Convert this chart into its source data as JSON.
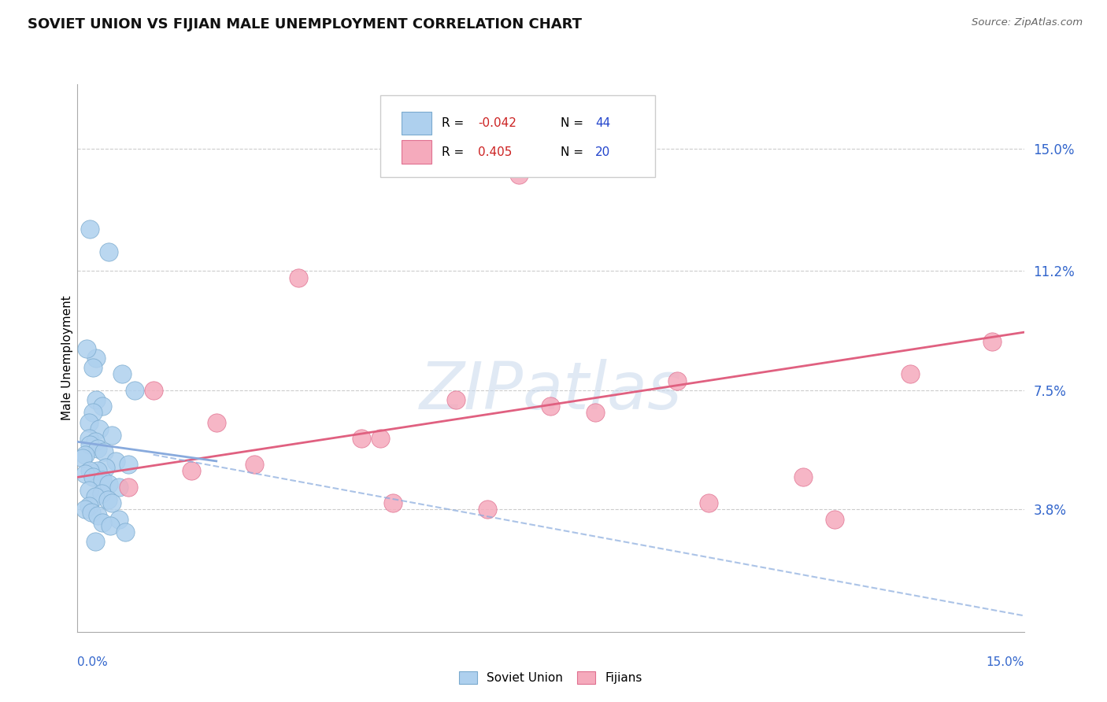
{
  "title": "SOVIET UNION VS FIJIAN MALE UNEMPLOYMENT CORRELATION CHART",
  "source": "Source: ZipAtlas.com",
  "ylabel": "Male Unemployment",
  "ytick_vals": [
    3.8,
    7.5,
    11.2,
    15.0
  ],
  "xlim": [
    0.0,
    15.0
  ],
  "ylim": [
    0.0,
    17.0
  ],
  "soviet_R": "-0.042",
  "soviet_N": "44",
  "fijian_R": "0.405",
  "fijian_N": "20",
  "soviet_dot_color": "#aed0ee",
  "soviet_dot_edge": "#7aaace",
  "fijian_dot_color": "#f5aabc",
  "fijian_dot_edge": "#e07090",
  "soviet_line_color": "#88aadd",
  "fijian_line_color": "#e06080",
  "bg_color": "#ffffff",
  "grid_color": "#cccccc",
  "axis_color": "#aaaaaa",
  "title_color": "#111111",
  "source_color": "#666666",
  "right_label_color": "#3366cc",
  "red_text_color": "#cc2222",
  "blue_n_color": "#2244cc",
  "watermark_color": "#c8d8ec",
  "soviet_x": [
    0.2,
    0.5,
    0.3,
    0.7,
    0.9,
    0.15,
    0.25,
    0.3,
    0.4,
    0.25,
    0.18,
    0.35,
    0.55,
    0.18,
    0.28,
    0.2,
    0.32,
    0.42,
    0.12,
    0.08,
    0.6,
    0.8,
    0.45,
    0.32,
    0.2,
    0.12,
    0.25,
    0.4,
    0.5,
    0.65,
    0.18,
    0.38,
    0.28,
    0.48,
    0.55,
    0.18,
    0.12,
    0.22,
    0.32,
    0.65,
    0.4,
    0.52,
    0.75,
    0.28
  ],
  "soviet_y": [
    12.5,
    11.8,
    8.5,
    8.0,
    7.5,
    8.8,
    8.2,
    7.2,
    7.0,
    6.8,
    6.5,
    6.3,
    6.1,
    6.0,
    5.9,
    5.8,
    5.7,
    5.6,
    5.5,
    5.4,
    5.3,
    5.2,
    5.1,
    5.0,
    5.0,
    4.9,
    4.8,
    4.7,
    4.6,
    4.5,
    4.4,
    4.3,
    4.2,
    4.1,
    4.0,
    3.9,
    3.8,
    3.7,
    3.6,
    3.5,
    3.4,
    3.3,
    3.1,
    2.8
  ],
  "fijian_x": [
    7.0,
    1.2,
    3.5,
    4.5,
    6.0,
    2.2,
    2.8,
    4.8,
    7.5,
    9.5,
    11.5,
    13.2,
    0.8,
    1.8,
    5.0,
    6.5,
    8.2,
    10.0,
    12.0,
    14.5
  ],
  "fijian_y": [
    14.2,
    7.5,
    11.0,
    6.0,
    7.2,
    6.5,
    5.2,
    6.0,
    7.0,
    7.8,
    4.8,
    8.0,
    4.5,
    5.0,
    4.0,
    3.8,
    6.8,
    4.0,
    3.5,
    9.0
  ],
  "soviet_line_x": [
    0.0,
    2.2
  ],
  "soviet_line_y_start": 5.9,
  "soviet_line_y_end": 5.3,
  "fijian_line_x_start": 0.0,
  "fijian_line_y_start": 4.8,
  "fijian_line_x_end": 15.0,
  "fijian_line_y_end": 9.3,
  "blue_dashed_x_start": 1.2,
  "blue_dashed_y_start": 5.5,
  "blue_dashed_x_end": 15.0,
  "blue_dashed_y_end": 0.5,
  "watermark": "ZIPatlas",
  "legend_blue_label": "Soviet Union",
  "legend_pink_label": "Fijians"
}
